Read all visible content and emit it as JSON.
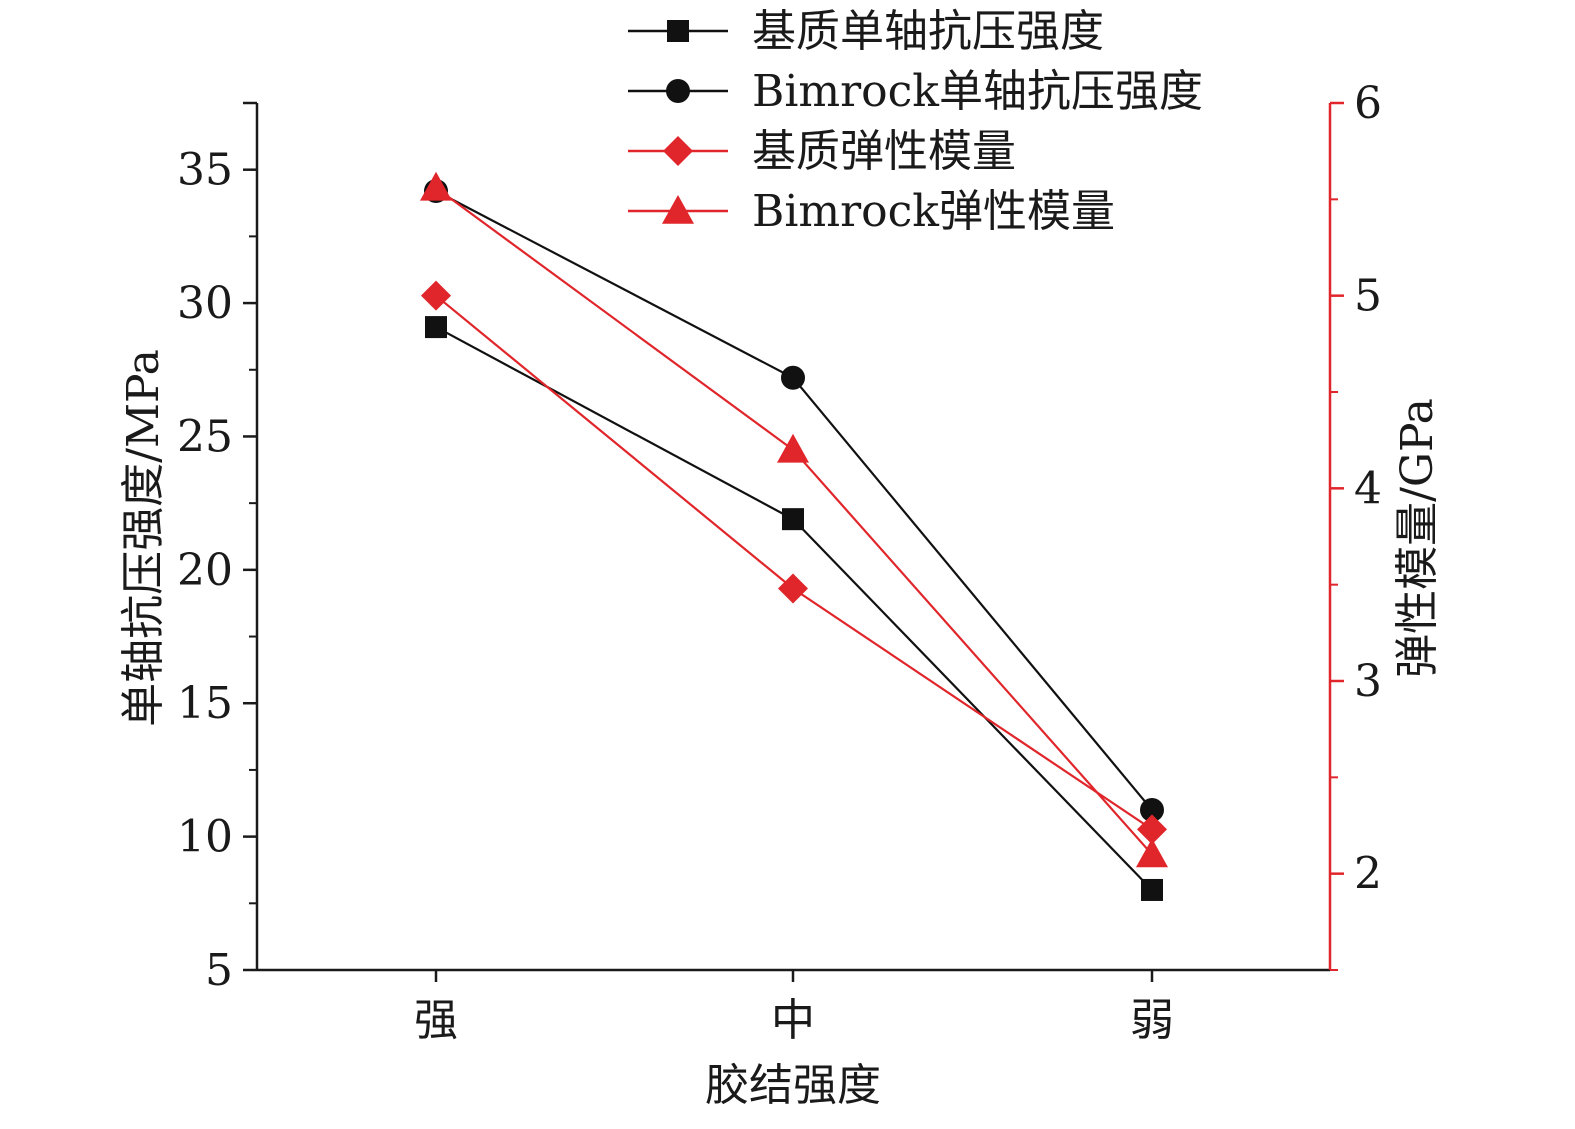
{
  "chart_data": {
    "type": "line",
    "xlabel": "胶结强度",
    "categories": [
      "强",
      "中",
      "弱"
    ],
    "y_left": {
      "label": "单轴抗压强度/MPa",
      "ylim": [
        5,
        37.5
      ],
      "ticks": [
        5,
        10,
        15,
        20,
        25,
        30,
        35
      ],
      "tick_labels": [
        "5",
        "10",
        "15",
        "20",
        "25",
        "30",
        "35"
      ],
      "color": "#1a1a1a"
    },
    "y_right": {
      "label": "弹性模量/GPa",
      "ylim": [
        1.5,
        6
      ],
      "ticks": [
        2,
        3,
        4,
        5,
        6
      ],
      "tick_labels": [
        "2",
        "3",
        "4",
        "5",
        "6"
      ],
      "color": "#e0262b"
    },
    "series": [
      {
        "name": "基质单轴抗压强度",
        "axis": "left",
        "marker": "square",
        "color": "#111111",
        "values": [
          29.1,
          21.9,
          8.0
        ]
      },
      {
        "name": "Bimrock单轴抗压强度",
        "axis": "left",
        "marker": "circle",
        "color": "#111111",
        "values": [
          34.2,
          27.2,
          11.0
        ]
      },
      {
        "name": "基质弹性模量",
        "axis": "right",
        "marker": "diamond",
        "color": "#e0262b",
        "values": [
          5.0,
          3.48,
          2.23
        ]
      },
      {
        "name": "Bimrock弹性模量",
        "axis": "right",
        "marker": "triangle",
        "color": "#e0262b",
        "values": [
          5.56,
          4.2,
          2.1
        ]
      }
    ],
    "grid": false,
    "legend": "top"
  }
}
